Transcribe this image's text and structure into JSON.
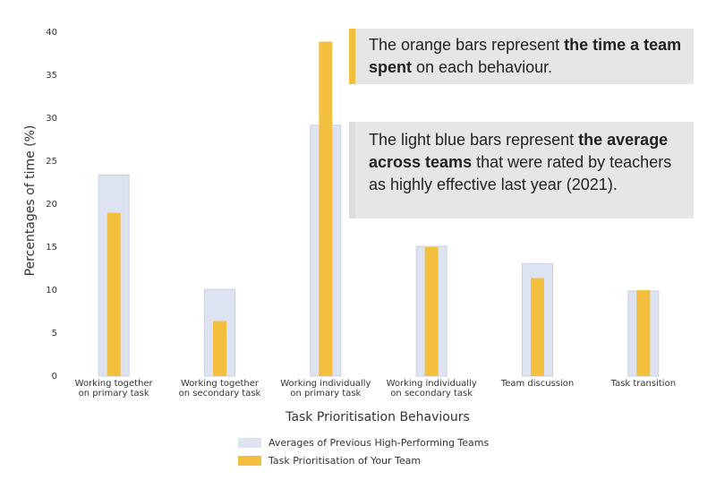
{
  "chart_data": {
    "type": "bar",
    "title": "",
    "xlabel": "Task Prioritisation Behaviours",
    "ylabel": "Percentages of time (%)",
    "ylim": [
      0,
      40
    ],
    "yticks": [
      0,
      5,
      10,
      15,
      20,
      25,
      30,
      35,
      40
    ],
    "categories": [
      [
        "Working together",
        "on primary task"
      ],
      [
        "Working together",
        "on secondary task"
      ],
      [
        "Working individually",
        "on primary task"
      ],
      [
        "Working individually",
        "on secondary task"
      ],
      [
        "Team discussion"
      ],
      [
        "Task transition"
      ]
    ],
    "series": [
      {
        "name": "Averages of Previous High-Performing Teams",
        "color": "#dde3f0",
        "values": [
          23.4,
          10.1,
          29.2,
          15.1,
          13.1,
          9.9
        ]
      },
      {
        "name": "Task Prioritisation of Your Team",
        "color": "#f2bf3e",
        "values": [
          19.0,
          6.4,
          38.9,
          15.0,
          11.4,
          10.0
        ]
      }
    ],
    "legend_position": "bottom-center",
    "grid": false
  },
  "annotations": {
    "orange_note": {
      "part1": "The orange bars represent ",
      "bold": "the time a team spent",
      "part2": " on each behaviour."
    },
    "blue_note": {
      "part1": "The light blue bars represent ",
      "bold": "the average across teams",
      "part2": " that were rated by teachers as highly effective last year (2021)."
    }
  }
}
